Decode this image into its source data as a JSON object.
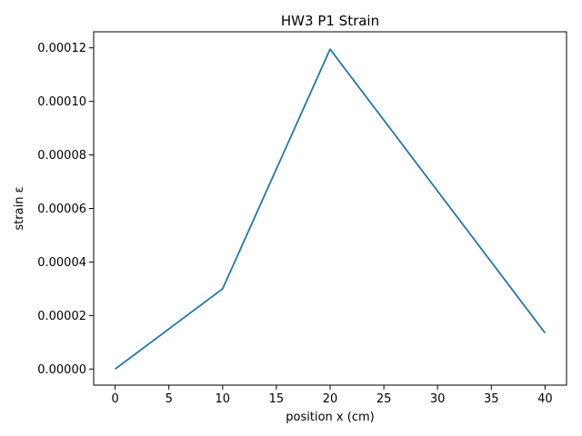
{
  "chart_data": {
    "type": "line",
    "title": "HW3 P1 Strain",
    "xlabel": "position x (cm)",
    "ylabel": "strain ε",
    "xlim": [
      -2,
      42
    ],
    "ylim": [
      -6e-06,
      0.000126
    ],
    "x_ticks": [
      0,
      5,
      10,
      15,
      20,
      25,
      30,
      35,
      40
    ],
    "x_tick_labels": [
      "0",
      "5",
      "10",
      "15",
      "20",
      "25",
      "30",
      "35",
      "40"
    ],
    "y_ticks": [
      0,
      2e-05,
      4e-05,
      6e-05,
      8e-05,
      0.0001,
      0.00012
    ],
    "y_tick_labels": [
      "0.00000",
      "0.00002",
      "0.00004",
      "0.00006",
      "0.00008",
      "0.00010",
      "0.00012"
    ],
    "grid": false,
    "series": [
      {
        "color": "#1f77b4",
        "x": [
          0,
          10,
          20,
          40
        ],
        "y": [
          0,
          3e-05,
          0.0001195,
          1.35e-05
        ]
      }
    ]
  }
}
